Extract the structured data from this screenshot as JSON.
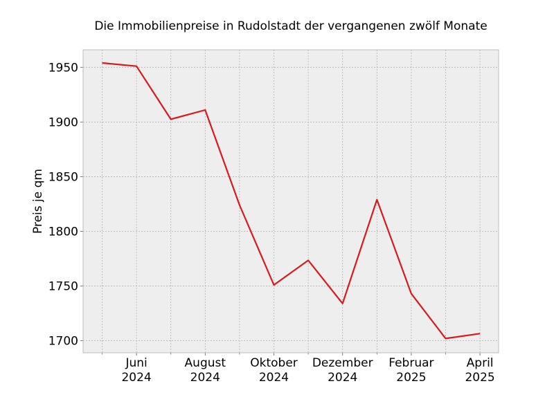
{
  "chart_data": {
    "type": "line",
    "title": "Die Immobilienpreise in Rudolstadt der vergangenen zwölf Monate",
    "xlabel": "",
    "ylabel": "Preis je qm",
    "x": [
      "2024-05",
      "2024-06",
      "2024-07",
      "2024-08",
      "2024-09",
      "2024-10",
      "2024-11",
      "2024-12",
      "2025-01",
      "2025-02",
      "2025-03",
      "2025-04"
    ],
    "series": [
      {
        "values": [
          1954,
          1951,
          1902.5,
          1911,
          1824,
          1751,
          1773.5,
          1734,
          1829,
          1743,
          1702,
          1706.5
        ]
      }
    ],
    "ylim": [
      1689,
      1966
    ],
    "yticks": [
      1700,
      1750,
      1800,
      1850,
      1900,
      1950
    ],
    "xtick_labels": [
      {
        "month": "Juni",
        "year": "2024"
      },
      {
        "month": "August",
        "year": "2024"
      },
      {
        "month": "Oktober",
        "year": "2024"
      },
      {
        "month": "Dezember",
        "year": "2024"
      },
      {
        "month": "Februar",
        "year": "2025"
      },
      {
        "month": "April",
        "year": "2025"
      }
    ],
    "grid": true,
    "colors": {
      "line": "#d7191c",
      "plot_bg": "#eeeeee",
      "grid": "#b0b0b0",
      "frame": "#bcbcbc"
    }
  }
}
